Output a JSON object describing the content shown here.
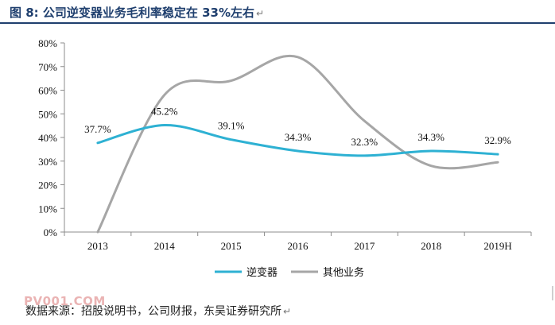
{
  "header": {
    "title": "图 8: 公司逆变器业务毛利率稳定在 33%左右"
  },
  "chart_data": {
    "type": "line",
    "categories": [
      "2013",
      "2014",
      "2015",
      "2016",
      "2017",
      "2018",
      "2019H"
    ],
    "series": [
      {
        "name": "逆变器",
        "color": "#2eb1d3",
        "values": [
          37.7,
          45.2,
          39.1,
          34.3,
          32.3,
          34.3,
          32.9
        ],
        "labels": [
          "37.7%",
          "45.2%",
          "39.1%",
          "34.3%",
          "32.3%",
          "34.3%",
          "32.9%"
        ]
      },
      {
        "name": "其他业务",
        "color": "#a6a6a6",
        "values": [
          0,
          58,
          64,
          74,
          47,
          28,
          29.5
        ]
      }
    ],
    "yticks": [
      "0%",
      "10%",
      "20%",
      "30%",
      "40%",
      "50%",
      "60%",
      "70%",
      "80%"
    ],
    "ylim": [
      0,
      80
    ],
    "grid": false,
    "legend_position": "bottom"
  },
  "footer": {
    "source": "数据来源：招股说明书，公司财报，东吴证券研究所",
    "watermark": "PV001.COM"
  }
}
